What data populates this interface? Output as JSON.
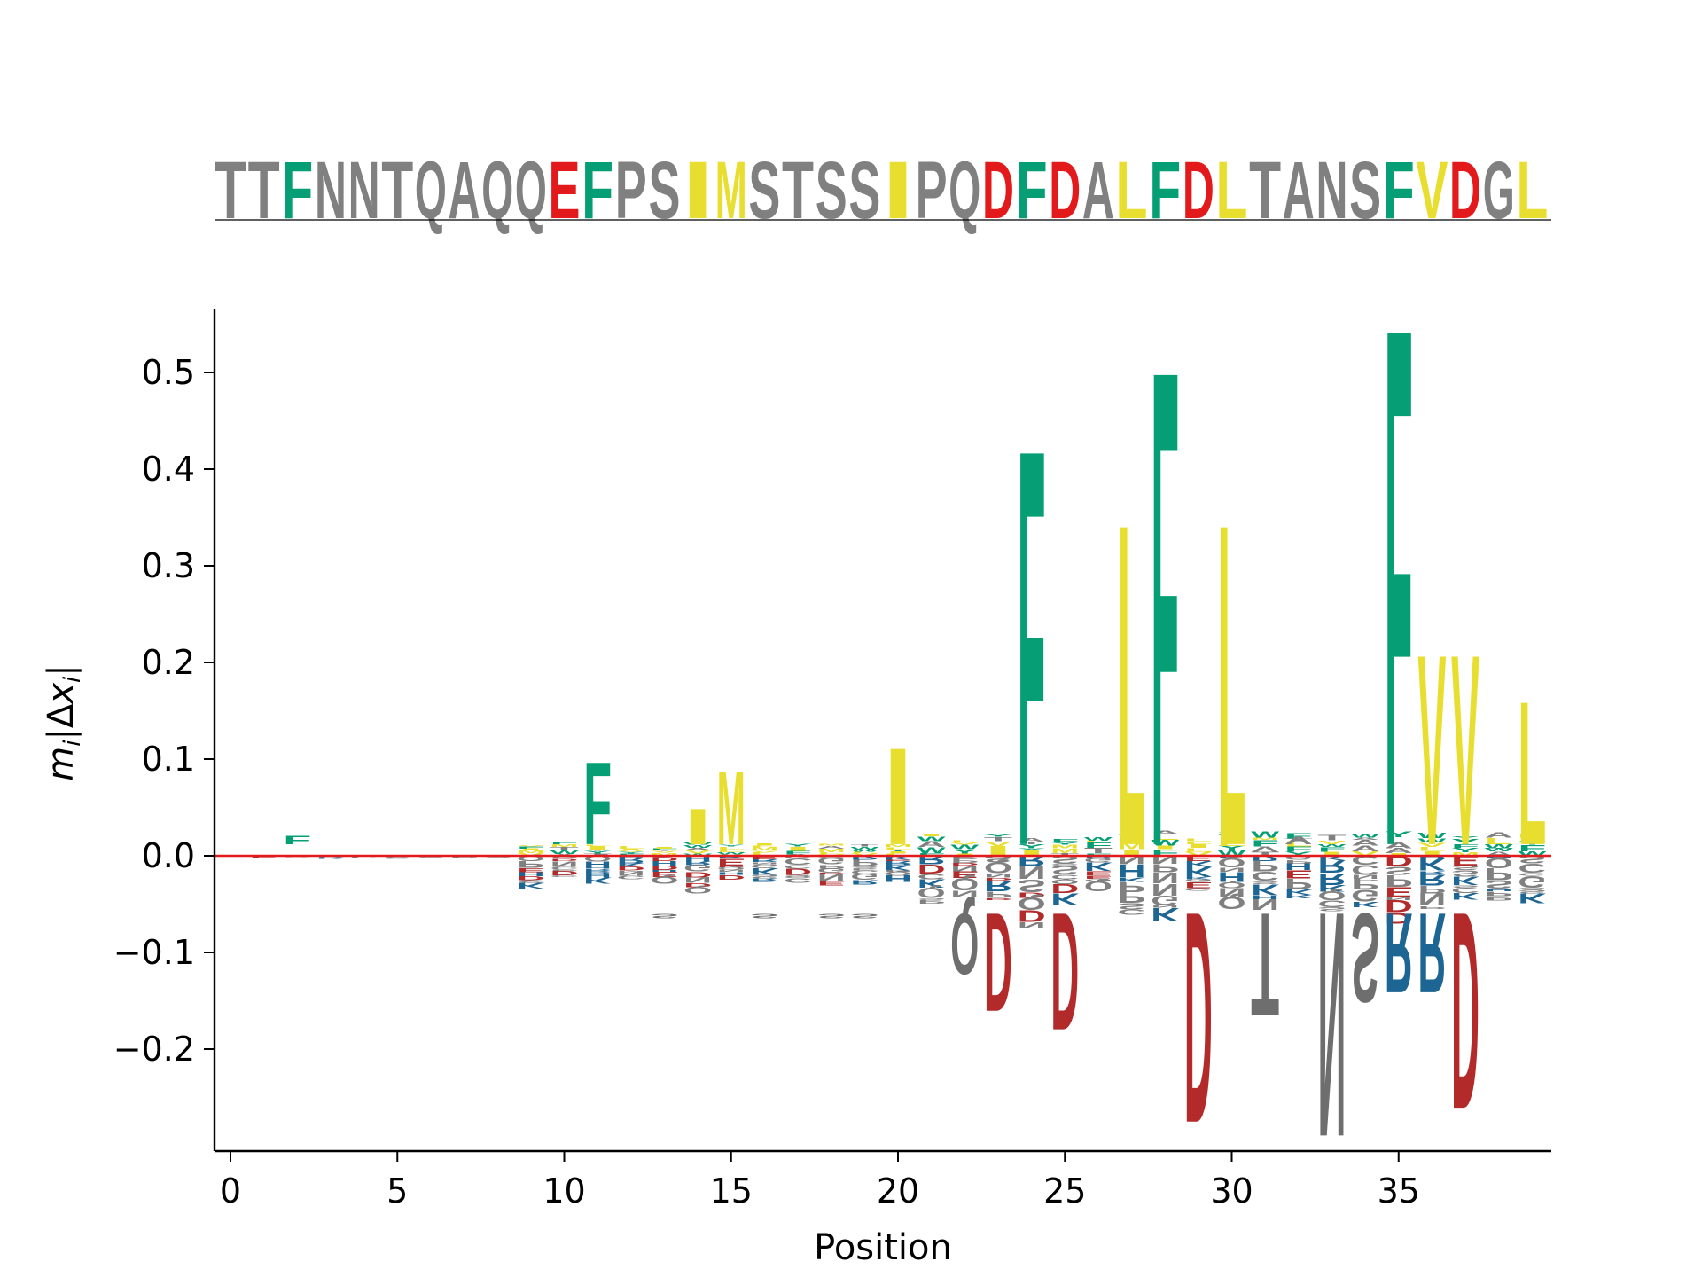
{
  "chart_data": {
    "type": "sequence-logo",
    "xlabel": "Position",
    "ylabel": "m_i|Δx_i|",
    "xlim": [
      -0.5,
      39.5
    ],
    "ylim": [
      -0.3,
      0.565
    ],
    "xticks": [
      0,
      5,
      10,
      15,
      20,
      25,
      30,
      35
    ],
    "xtick_labels": [
      "0",
      "5",
      "10",
      "15",
      "20",
      "25",
      "30",
      "35"
    ],
    "yticks": [
      -0.2,
      -0.1,
      0.0,
      0.1,
      0.2,
      0.3,
      0.4,
      0.5
    ],
    "ytick_labels": [
      "−0.2",
      "−0.1",
      "0.0",
      "0.1",
      "0.2",
      "0.3",
      "0.4",
      "0.5"
    ],
    "sequence": "TTFNNTQAQQEFPSIMSTSSIPQDFDALFDLTANSFVDGL",
    "residue_colors": {
      "hydrophobic_aliphatic": "#e8de2f",
      "aromatic": "#069f75",
      "acidic": "#e31a1c",
      "acidic_dark": "#b22a2a",
      "basic": "#1d6593",
      "other": "#808080"
    },
    "zero_line_color": "#e31a1c",
    "positive_letters": [
      {
        "pos": 2,
        "letter": "F",
        "value": 0.003
      },
      {
        "pos": 11,
        "letter": "F",
        "value": 0.1
      },
      {
        "pos": 14,
        "letter": "I",
        "value": 0.05
      },
      {
        "pos": 15,
        "letter": "M",
        "value": 0.09
      },
      {
        "pos": 20,
        "letter": "I",
        "value": 0.115
      },
      {
        "pos": 24,
        "letter": "F",
        "value": 0.435
      },
      {
        "pos": 27,
        "letter": "L",
        "value": 0.355
      },
      {
        "pos": 28,
        "letter": "F",
        "value": 0.52
      },
      {
        "pos": 30,
        "letter": "L",
        "value": 0.355
      },
      {
        "pos": 32,
        "letter": "A",
        "value": 0.02
      },
      {
        "pos": 35,
        "letter": "F",
        "value": 0.565
      },
      {
        "pos": 36,
        "letter": "V",
        "value": 0.215
      },
      {
        "pos": 37,
        "letter": "V",
        "value": 0.215
      },
      {
        "pos": 39,
        "letter": "L",
        "value": 0.165
      }
    ],
    "negative_letters": [
      {
        "pos": 13,
        "letter": "S",
        "value": -0.055
      },
      {
        "pos": 16,
        "letter": "S",
        "value": -0.065
      },
      {
        "pos": 18,
        "letter": "S",
        "value": -0.065
      },
      {
        "pos": 19,
        "letter": "S",
        "value": -0.055
      },
      {
        "pos": 22,
        "letter": "Q",
        "value": -0.125
      },
      {
        "pos": 23,
        "letter": "D",
        "value": -0.165
      },
      {
        "pos": 25,
        "letter": "D",
        "value": -0.185
      },
      {
        "pos": 29,
        "letter": "D",
        "value": -0.285
      },
      {
        "pos": 31,
        "letter": "T",
        "value": -0.17
      },
      {
        "pos": 33,
        "letter": "N",
        "value": -0.3
      },
      {
        "pos": 34,
        "letter": "S",
        "value": -0.155
      },
      {
        "pos": 35,
        "letter": "R",
        "value": -0.145
      },
      {
        "pos": 36,
        "letter": "R",
        "value": -0.145
      },
      {
        "pos": 37,
        "letter": "D",
        "value": -0.27
      }
    ]
  }
}
